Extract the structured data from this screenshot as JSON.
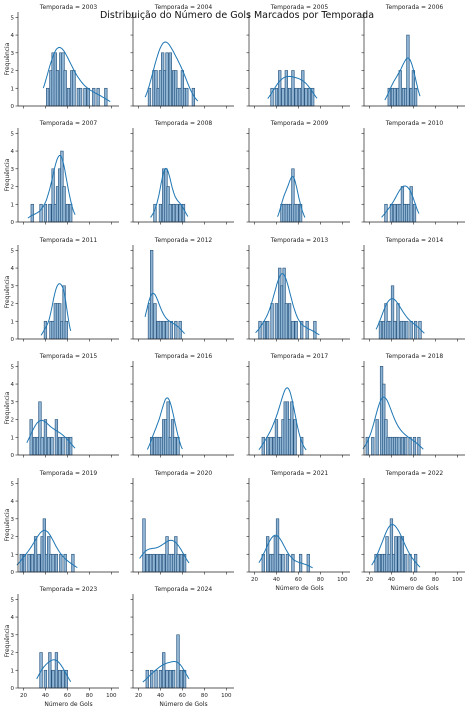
{
  "title": "Distribuição do Número de Gols Marcados por Temporada",
  "chart_data": {
    "type": "bar",
    "subtype": "histogram-facet-grid-with-kde",
    "title": "Distribuição do Número de Gols Marcados por Temporada",
    "xlabel": "Número de Gols",
    "ylabel": "Frequência",
    "xlim": [
      15,
      107
    ],
    "ylim": [
      0,
      5.3
    ],
    "xticks": [
      20,
      40,
      60,
      80,
      100
    ],
    "yticks": [
      0,
      1,
      2,
      3,
      4,
      5
    ],
    "grid": false,
    "legend": "none",
    "bar_color": "#8fb3d3",
    "edge_color": "#1f4e79",
    "kde_color": "#1f77b4",
    "bar_width": 2.4,
    "panels": [
      {
        "title": "Temporada = 2003",
        "bins": [
          [
            42,
            1
          ],
          [
            45,
            2
          ],
          [
            47,
            3
          ],
          [
            49,
            3
          ],
          [
            51,
            2
          ],
          [
            54,
            3
          ],
          [
            56,
            3
          ],
          [
            58,
            2
          ],
          [
            61,
            1
          ],
          [
            64,
            2
          ],
          [
            66,
            2
          ],
          [
            70,
            1
          ],
          [
            72,
            1
          ],
          [
            76,
            1
          ],
          [
            79,
            1
          ],
          [
            84,
            1
          ],
          [
            88,
            1
          ],
          [
            95,
            1
          ]
        ]
      },
      {
        "title": "Temporada = 2004",
        "bins": [
          [
            30,
            1
          ],
          [
            34,
            2
          ],
          [
            36,
            2
          ],
          [
            38,
            1
          ],
          [
            40,
            2
          ],
          [
            42,
            3
          ],
          [
            44,
            2
          ],
          [
            46,
            3
          ],
          [
            49,
            3
          ],
          [
            52,
            2
          ],
          [
            54,
            2
          ],
          [
            56,
            1
          ],
          [
            58,
            1
          ],
          [
            60,
            2
          ],
          [
            62,
            1
          ],
          [
            64,
            1
          ],
          [
            70,
            1
          ]
        ]
      },
      {
        "title": "Temporada = 2005",
        "bins": [
          [
            36,
            1
          ],
          [
            40,
            1
          ],
          [
            43,
            2
          ],
          [
            46,
            1
          ],
          [
            49,
            2
          ],
          [
            52,
            1
          ],
          [
            55,
            2
          ],
          [
            58,
            1
          ],
          [
            61,
            1
          ],
          [
            64,
            2
          ],
          [
            67,
            1
          ],
          [
            70,
            1
          ],
          [
            73,
            1
          ]
        ]
      },
      {
        "title": "Temporada = 2006",
        "bins": [
          [
            38,
            1
          ],
          [
            41,
            1
          ],
          [
            43,
            1
          ],
          [
            46,
            1
          ],
          [
            48,
            2
          ],
          [
            51,
            1
          ],
          [
            53,
            1
          ],
          [
            55,
            4
          ],
          [
            58,
            1
          ],
          [
            60,
            2
          ],
          [
            62,
            1
          ]
        ]
      },
      {
        "title": "Temporada = 2007",
        "bins": [
          [
            28,
            1
          ],
          [
            36,
            1
          ],
          [
            40,
            1
          ],
          [
            44,
            1
          ],
          [
            47,
            3
          ],
          [
            49,
            1
          ],
          [
            51,
            2
          ],
          [
            53,
            3
          ],
          [
            55,
            4
          ],
          [
            57,
            2
          ],
          [
            60,
            1
          ],
          [
            63,
            1
          ]
        ]
      },
      {
        "title": "Temporada = 2008",
        "bins": [
          [
            35,
            1
          ],
          [
            40,
            1
          ],
          [
            43,
            3
          ],
          [
            45,
            3
          ],
          [
            47,
            2
          ],
          [
            49,
            1
          ],
          [
            52,
            1
          ],
          [
            55,
            1
          ],
          [
            58,
            1
          ],
          [
            61,
            1
          ]
        ]
      },
      {
        "title": "Temporada = 2009",
        "bins": [
          [
            45,
            1
          ],
          [
            47,
            1
          ],
          [
            49,
            1
          ],
          [
            51,
            1
          ],
          [
            53,
            1
          ],
          [
            55,
            3
          ],
          [
            57,
            1
          ],
          [
            59,
            1
          ],
          [
            62,
            1
          ]
        ]
      },
      {
        "title": "Temporada = 2010",
        "bins": [
          [
            35,
            1
          ],
          [
            40,
            1
          ],
          [
            43,
            1
          ],
          [
            46,
            1
          ],
          [
            48,
            1
          ],
          [
            50,
            2
          ],
          [
            52,
            1
          ],
          [
            54,
            1
          ],
          [
            56,
            1
          ],
          [
            58,
            2
          ],
          [
            61,
            1
          ]
        ]
      },
      {
        "title": "Temporada = 2011",
        "bins": [
          [
            40,
            1
          ],
          [
            45,
            1
          ],
          [
            47,
            1
          ],
          [
            49,
            2
          ],
          [
            51,
            2
          ],
          [
            53,
            2
          ],
          [
            55,
            1
          ],
          [
            57,
            3
          ],
          [
            59,
            1
          ]
        ]
      },
      {
        "title": "Temporada = 2012",
        "bins": [
          [
            30,
            2
          ],
          [
            32,
            5
          ],
          [
            35,
            2
          ],
          [
            38,
            1
          ],
          [
            40,
            1
          ],
          [
            43,
            1
          ],
          [
            46,
            1
          ],
          [
            50,
            1
          ],
          [
            54,
            1
          ],
          [
            58,
            1
          ]
        ]
      },
      {
        "title": "Temporada = 2013",
        "bins": [
          [
            25,
            1
          ],
          [
            29,
            1
          ],
          [
            32,
            1
          ],
          [
            36,
            2
          ],
          [
            40,
            2
          ],
          [
            43,
            4
          ],
          [
            45,
            3
          ],
          [
            47,
            4
          ],
          [
            49,
            2
          ],
          [
            52,
            2
          ],
          [
            55,
            1
          ],
          [
            58,
            1
          ],
          [
            63,
            1
          ],
          [
            68,
            1
          ],
          [
            75,
            1
          ]
        ]
      },
      {
        "title": "Temporada = 2014",
        "bins": [
          [
            30,
            1
          ],
          [
            33,
            1
          ],
          [
            35,
            2
          ],
          [
            37,
            1
          ],
          [
            39,
            1
          ],
          [
            41,
            3
          ],
          [
            43,
            1
          ],
          [
            46,
            2
          ],
          [
            49,
            1
          ],
          [
            51,
            1
          ],
          [
            54,
            1
          ],
          [
            58,
            1
          ],
          [
            62,
            1
          ],
          [
            66,
            1
          ]
        ]
      },
      {
        "title": "Temporada = 2015",
        "bins": [
          [
            27,
            2
          ],
          [
            30,
            1
          ],
          [
            33,
            1
          ],
          [
            35,
            3
          ],
          [
            37,
            1
          ],
          [
            40,
            2
          ],
          [
            43,
            1
          ],
          [
            46,
            1
          ],
          [
            50,
            2
          ],
          [
            53,
            1
          ],
          [
            56,
            1
          ],
          [
            60,
            1
          ],
          [
            63,
            1
          ]
        ]
      },
      {
        "title": "Temporada = 2016",
        "bins": [
          [
            32,
            1
          ],
          [
            35,
            1
          ],
          [
            37,
            1
          ],
          [
            39,
            1
          ],
          [
            41,
            1
          ],
          [
            43,
            2
          ],
          [
            45,
            2
          ],
          [
            47,
            3
          ],
          [
            49,
            1
          ],
          [
            51,
            2
          ],
          [
            53,
            1
          ],
          [
            56,
            1
          ]
        ]
      },
      {
        "title": "Temporada = 2017",
        "bins": [
          [
            28,
            1
          ],
          [
            32,
            1
          ],
          [
            35,
            1
          ],
          [
            38,
            1
          ],
          [
            40,
            2
          ],
          [
            42,
            1
          ],
          [
            44,
            1
          ],
          [
            46,
            2
          ],
          [
            48,
            3
          ],
          [
            50,
            3
          ],
          [
            52,
            2
          ],
          [
            54,
            3
          ],
          [
            57,
            2
          ],
          [
            63,
            1
          ]
        ]
      },
      {
        "title": "Temporada = 2018",
        "bins": [
          [
            18,
            1
          ],
          [
            23,
            1
          ],
          [
            27,
            2
          ],
          [
            31,
            5
          ],
          [
            33,
            4
          ],
          [
            35,
            2
          ],
          [
            37,
            1
          ],
          [
            39,
            1
          ],
          [
            41,
            1
          ],
          [
            43,
            1
          ],
          [
            45,
            1
          ],
          [
            47,
            1
          ],
          [
            50,
            1
          ],
          [
            53,
            1
          ],
          [
            57,
            1
          ],
          [
            61,
            1
          ],
          [
            65,
            1
          ]
        ]
      },
      {
        "title": "Temporada = 2019",
        "bins": [
          [
            18,
            1
          ],
          [
            21,
            1
          ],
          [
            25,
            1
          ],
          [
            28,
            1
          ],
          [
            31,
            2
          ],
          [
            34,
            1
          ],
          [
            37,
            2
          ],
          [
            39,
            3
          ],
          [
            41,
            1
          ],
          [
            43,
            2
          ],
          [
            45,
            1
          ],
          [
            47,
            1
          ],
          [
            50,
            1
          ],
          [
            54,
            1
          ],
          [
            58,
            1
          ],
          [
            65,
            1
          ]
        ]
      },
      {
        "title": "Temporada = 2020",
        "bins": [
          [
            25,
            3
          ],
          [
            28,
            1
          ],
          [
            31,
            1
          ],
          [
            34,
            1
          ],
          [
            37,
            1
          ],
          [
            40,
            1
          ],
          [
            43,
            1
          ],
          [
            46,
            2
          ],
          [
            48,
            1
          ],
          [
            50,
            1
          ],
          [
            52,
            1
          ],
          [
            54,
            2
          ],
          [
            56,
            1
          ],
          [
            59,
            1
          ],
          [
            62,
            1
          ]
        ]
      },
      {
        "title": "Temporada = 2021",
        "bins": [
          [
            28,
            1
          ],
          [
            32,
            2
          ],
          [
            35,
            1
          ],
          [
            37,
            1
          ],
          [
            39,
            2
          ],
          [
            41,
            3
          ],
          [
            43,
            1
          ],
          [
            46,
            1
          ],
          [
            50,
            1
          ],
          [
            55,
            1
          ],
          [
            62,
            1
          ],
          [
            69,
            1
          ]
        ]
      },
      {
        "title": "Temporada = 2022",
        "bins": [
          [
            26,
            1
          ],
          [
            29,
            1
          ],
          [
            32,
            1
          ],
          [
            34,
            1
          ],
          [
            36,
            2
          ],
          [
            38,
            1
          ],
          [
            40,
            3
          ],
          [
            42,
            1
          ],
          [
            44,
            2
          ],
          [
            47,
            2
          ],
          [
            50,
            2
          ],
          [
            53,
            1
          ],
          [
            57,
            1
          ],
          [
            62,
            1
          ]
        ]
      },
      {
        "title": "Temporada = 2023",
        "bins": [
          [
            36,
            2
          ],
          [
            40,
            1
          ],
          [
            44,
            2
          ],
          [
            47,
            1
          ],
          [
            50,
            2
          ],
          [
            53,
            1
          ],
          [
            56,
            1
          ],
          [
            59,
            1
          ]
        ]
      },
      {
        "title": "Temporada = 2024",
        "bins": [
          [
            28,
            1
          ],
          [
            32,
            1
          ],
          [
            36,
            1
          ],
          [
            40,
            1
          ],
          [
            43,
            2
          ],
          [
            46,
            1
          ],
          [
            49,
            1
          ],
          [
            52,
            1
          ],
          [
            56,
            3
          ],
          [
            59,
            1
          ],
          [
            62,
            1
          ]
        ]
      }
    ]
  }
}
